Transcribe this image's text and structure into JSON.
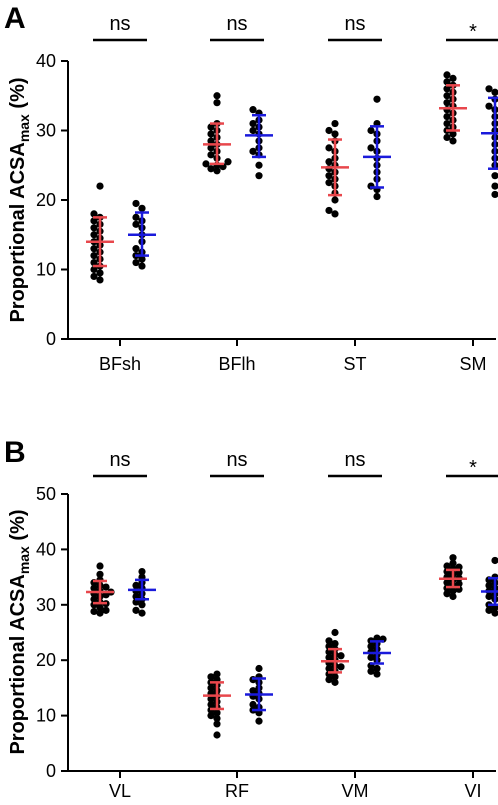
{
  "chart_data": [
    {
      "type": "scatter",
      "panel_label": "A",
      "ylabel_main": "Proportional ACSA",
      "ylabel_sub": "max",
      "ylabel_unit": " (%)",
      "ylim": [
        0,
        40
      ],
      "yticks": [
        0,
        10,
        20,
        30,
        40
      ],
      "categories": [
        "BFsh",
        "BFlh",
        "ST",
        "SM"
      ],
      "significance": [
        "ns",
        "ns",
        "ns",
        "*"
      ],
      "series_colors": [
        "#e8474c",
        "#1a1adb"
      ],
      "groups": [
        {
          "category": "BFsh",
          "red": {
            "mean": 14.0,
            "sd_low": 10.5,
            "sd_high": 17.5,
            "points": [
              22.0,
              18.0,
              17.5,
              17.0,
              16.5,
              16.0,
              15.5,
              15.0,
              14.5,
              14.0,
              13.5,
              13.0,
              12.5,
              12.0,
              11.5,
              11.0,
              10.5,
              10.0,
              9.5,
              9.0,
              8.5
            ]
          },
          "blue": {
            "mean": 15.0,
            "sd_low": 12.0,
            "sd_high": 18.2,
            "points": [
              19.5,
              18.8,
              17.5,
              17.0,
              16.5,
              16.0,
              15.0,
              14.0,
              13.0,
              12.5,
              12.0,
              11.5,
              11.0,
              10.5
            ]
          }
        },
        {
          "category": "BFlh",
          "red": {
            "mean": 28.0,
            "sd_low": 25.2,
            "sd_high": 31.0,
            "points": [
              35.0,
              34.0,
              31.0,
              30.5,
              30.0,
              29.5,
              29.0,
              28.5,
              28.0,
              27.5,
              27.0,
              26.5,
              26.0,
              25.5,
              25.2,
              25.0,
              24.8,
              24.5,
              24.2
            ]
          },
          "blue": {
            "mean": 29.3,
            "sd_low": 26.2,
            "sd_high": 32.2,
            "points": [
              33.0,
              32.5,
              31.5,
              31.0,
              30.5,
              30.0,
              29.5,
              28.5,
              27.5,
              27.0,
              26.5,
              25.0,
              23.5
            ]
          }
        },
        {
          "category": "ST",
          "red": {
            "mean": 24.7,
            "sd_low": 20.7,
            "sd_high": 28.7,
            "points": [
              31.0,
              30.0,
              29.5,
              28.5,
              27.5,
              27.0,
              26.0,
              25.5,
              25.0,
              24.5,
              24.0,
              23.5,
              23.0,
              22.5,
              22.0,
              21.0,
              20.0,
              18.5,
              18.0
            ]
          },
          "blue": {
            "mean": 26.2,
            "sd_low": 21.8,
            "sd_high": 30.6,
            "points": [
              34.5,
              31.0,
              30.0,
              29.5,
              28.5,
              27.5,
              27.0,
              26.0,
              25.0,
              24.0,
              23.0,
              22.0,
              21.5,
              20.5
            ]
          }
        },
        {
          "category": "SM",
          "red": {
            "mean": 33.2,
            "sd_low": 30.0,
            "sd_high": 36.5,
            "points": [
              38.0,
              37.5,
              37.0,
              36.5,
              36.0,
              35.5,
              35.0,
              34.5,
              34.0,
              33.5,
              33.0,
              32.5,
              32.0,
              31.5,
              31.0,
              30.5,
              30.0,
              29.5,
              29.0,
              28.5
            ]
          },
          "blue": {
            "mean": 29.6,
            "sd_low": 24.5,
            "sd_high": 34.7,
            "points": [
              36.0,
              35.5,
              34.5,
              33.5,
              33.0,
              32.0,
              31.0,
              30.0,
              29.0,
              28.0,
              27.0,
              26.0,
              25.0,
              23.5,
              22.0,
              20.8
            ]
          }
        }
      ]
    },
    {
      "type": "scatter",
      "panel_label": "B",
      "ylabel_main": "Proportional ACSA",
      "ylabel_sub": "max",
      "ylabel_unit": " (%)",
      "ylim": [
        0,
        50
      ],
      "yticks": [
        0,
        10,
        20,
        30,
        40,
        50
      ],
      "categories": [
        "VL",
        "RF",
        "VM",
        "VI"
      ],
      "significance": [
        "ns",
        "ns",
        "ns",
        "*"
      ],
      "series_colors": [
        "#e8474c",
        "#1a1adb"
      ],
      "groups": [
        {
          "category": "VL",
          "red": {
            "mean": 32.3,
            "sd_low": 30.3,
            "sd_high": 34.3,
            "points": [
              37.0,
              35.5,
              34.5,
              34.0,
              33.5,
              33.0,
              32.5,
              32.3,
              32.0,
              31.5,
              31.0,
              30.5,
              30.0,
              29.5,
              29.0,
              28.8,
              28.5,
              30.2,
              31.8,
              33.2
            ]
          },
          "blue": {
            "mean": 32.7,
            "sd_low": 31.0,
            "sd_high": 34.5,
            "points": [
              36.0,
              35.0,
              34.0,
              33.5,
              33.0,
              32.5,
              32.0,
              31.5,
              31.0,
              30.5,
              30.0,
              29.0,
              28.5
            ]
          }
        },
        {
          "category": "RF",
          "red": {
            "mean": 13.6,
            "sd_low": 11.2,
            "sd_high": 16.0,
            "points": [
              17.5,
              17.0,
              16.5,
              16.0,
              15.5,
              15.0,
              14.5,
              14.0,
              13.5,
              13.0,
              12.5,
              12.0,
              11.5,
              11.0,
              10.5,
              10.0,
              9.5,
              8.5,
              6.5
            ]
          },
          "blue": {
            "mean": 13.8,
            "sd_low": 11.0,
            "sd_high": 16.7,
            "points": [
              18.5,
              17.0,
              16.5,
              16.0,
              15.0,
              14.5,
              14.0,
              13.5,
              13.0,
              12.0,
              11.5,
              11.0,
              10.5,
              9.0
            ]
          }
        },
        {
          "category": "VM",
          "red": {
            "mean": 19.8,
            "sd_low": 17.8,
            "sd_high": 22.0,
            "points": [
              25.0,
              23.5,
              23.0,
              22.5,
              22.0,
              21.5,
              21.0,
              20.5,
              20.0,
              19.5,
              19.0,
              18.5,
              18.0,
              17.5,
              17.0,
              16.5,
              16.0,
              18.8,
              20.8
            ]
          },
          "blue": {
            "mean": 21.3,
            "sd_low": 19.4,
            "sd_high": 23.4,
            "points": [
              24.0,
              23.8,
              23.5,
              23.0,
              22.5,
              22.0,
              21.5,
              21.0,
              20.5,
              20.0,
              19.0,
              18.5,
              18.0,
              17.5
            ]
          }
        },
        {
          "category": "VI",
          "red": {
            "mean": 34.7,
            "sd_low": 33.2,
            "sd_high": 36.3,
            "points": [
              38.5,
              37.5,
              37.0,
              36.5,
              36.0,
              35.5,
              35.0,
              34.5,
              34.0,
              33.5,
              33.0,
              32.5,
              32.0,
              31.5,
              35.8,
              34.8,
              33.8,
              36.8,
              32.8
            ]
          },
          "blue": {
            "mean": 32.4,
            "sd_low": 30.0,
            "sd_high": 34.8,
            "points": [
              38.0,
              35.0,
              34.5,
              34.0,
              33.5,
              33.0,
              32.5,
              32.0,
              31.5,
              31.0,
              30.0,
              29.5,
              29.0,
              28.5
            ]
          }
        }
      ]
    }
  ]
}
